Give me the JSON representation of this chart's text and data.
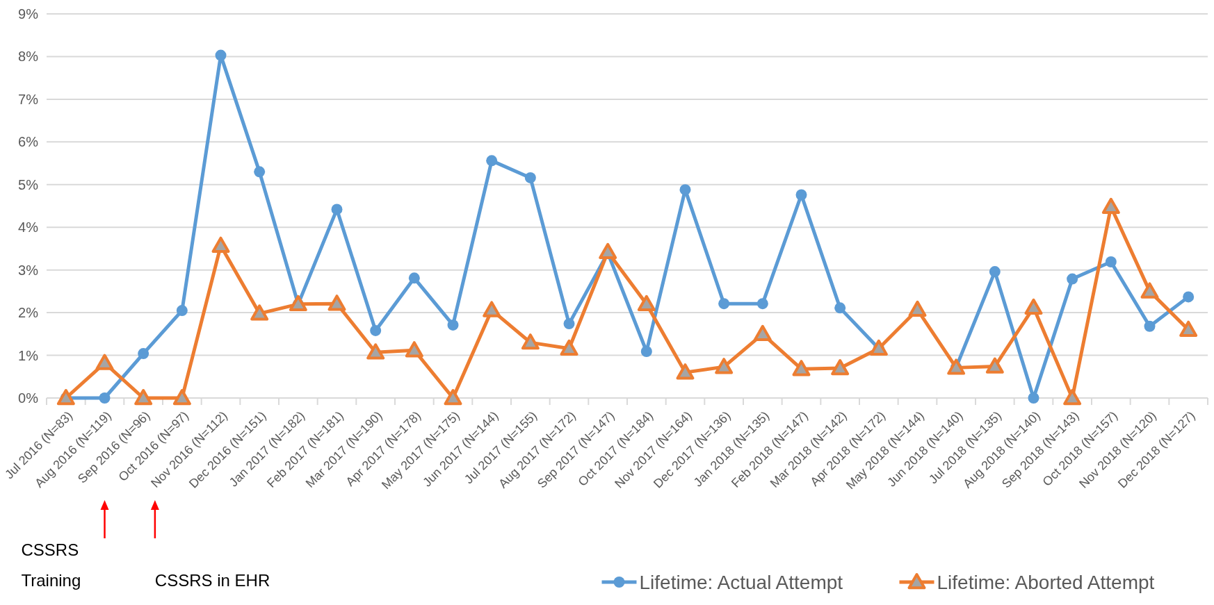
{
  "chart_data": {
    "type": "line",
    "categories": [
      "Jul 2016 (N=83)",
      "Aug 2016 (N=119)",
      "Sep 2016 (N=96)",
      "Oct 2016 (N=97)",
      "Nov 2016 (N=112)",
      "Dec 2016 (N=151)",
      "Jan 2017 (N=182)",
      "Feb 2017 (N=181)",
      "Mar 2017 (N=190)",
      "Apr 2017 (N=178)",
      "May 2017 (N=175)",
      "Jun 2017 (N=144)",
      "Jul 2017 (N=155)",
      "Aug 2017 (N=172)",
      "Sep 2017 (N=147)",
      "Oct 2017 (N=184)",
      "Nov 2017 (N=164)",
      "Dec 2017 (N=136)",
      "Jan 2018 (N=135)",
      "Feb 2018 (N=147)",
      "Mar 2018 (N=142)",
      "Apr 2018 (N=172)",
      "May 2018 (N=144)",
      "Jun 2018 (N=140)",
      "Jul 2018 (N=135)",
      "Aug 2018 (N=140)",
      "Sep 2018 (N=143)",
      "Oct 2018 (N=157)",
      "Nov 2018 (N=120)",
      "Dec 2018 (N=127)"
    ],
    "series": [
      {
        "name": "Lifetime: Actual Attempt",
        "color": "#5b9bd5",
        "marker": "circle",
        "values": [
          0,
          0,
          1.04,
          2.05,
          8.03,
          5.3,
          2.2,
          4.42,
          1.58,
          2.81,
          1.71,
          5.56,
          5.16,
          1.74,
          3.4,
          1.09,
          4.88,
          2.21,
          2.21,
          4.76,
          2.11,
          1.16,
          null,
          0.72,
          2.96,
          0,
          2.79,
          3.19,
          1.68,
          2.37
        ]
      },
      {
        "name": "Lifetime: Aborted Attempt",
        "color": "#ed7d31",
        "marker": "triangle",
        "values": [
          0,
          0.82,
          0,
          0,
          3.57,
          1.98,
          2.2,
          2.21,
          1.07,
          1.12,
          0,
          2.06,
          1.3,
          1.16,
          3.42,
          2.2,
          0.6,
          0.73,
          1.5,
          0.68,
          0.7,
          1.16,
          2.07,
          0.71,
          0.74,
          2.12,
          0,
          4.48,
          2.5,
          1.6
        ]
      }
    ],
    "ylim": [
      0,
      9
    ],
    "yticks": [
      {
        "value": 0,
        "label": "0%"
      },
      {
        "value": 1,
        "label": "1%"
      },
      {
        "value": 2,
        "label": "2%"
      },
      {
        "value": 3,
        "label": "3%"
      },
      {
        "value": 4,
        "label": "4%"
      },
      {
        "value": 5,
        "label": "5%"
      },
      {
        "value": 6,
        "label": "6%"
      },
      {
        "value": 7,
        "label": "7%"
      },
      {
        "value": 8,
        "label": "8%"
      },
      {
        "value": 9,
        "label": "9%"
      }
    ],
    "grid": "y",
    "legend": "bottom right",
    "annotations": [
      "CSSRS Training",
      "CSSRS in EHR"
    ]
  }
}
